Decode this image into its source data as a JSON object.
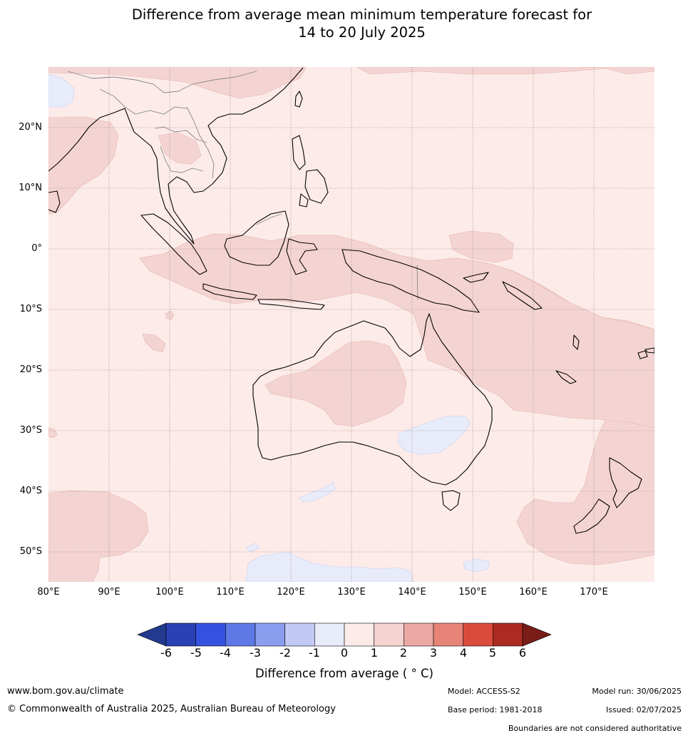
{
  "title": {
    "line1": "Difference from average mean minimum temperature forecast for",
    "line2": "14 to 20 July 2025"
  },
  "map": {
    "latitude_labels": [
      "20°N",
      "10°N",
      "0°",
      "10°S",
      "20°S",
      "30°S",
      "40°S",
      "50°S"
    ],
    "longitude_labels": [
      "80°E",
      "90°E",
      "100°E",
      "110°E",
      "120°E",
      "130°E",
      "140°E",
      "150°E",
      "160°E",
      "170°E"
    ],
    "extent": {
      "lon_min": 80,
      "lon_max": 180,
      "lat_min": -55,
      "lat_max": 30
    },
    "gridlines": true,
    "colors": {
      "ocean_0_1": "#fcebe9",
      "warm_1_2": "#f4d4d2",
      "cool_m1_0": "#e8ecfa",
      "coastline": "#000000",
      "borders": "#808080"
    }
  },
  "colorbar": {
    "ticks": [
      "-6",
      "-5",
      "-4",
      "-3",
      "-2",
      "-1",
      "0",
      "1",
      "2",
      "3",
      "4",
      "5",
      "6"
    ],
    "label": "Difference from average ( ° C)",
    "colors": [
      "#233a8e",
      "#2a40b5",
      "#3352e0",
      "#5e78e6",
      "#8a9def",
      "#c2c9f4",
      "#e9ecfa",
      "#fcebe9",
      "#f5d3d0",
      "#eaa9a3",
      "#e68478",
      "#da4b3e",
      "#ad2a22",
      "#7a1c18"
    ]
  },
  "footer": {
    "website": "www.bom.gov.au/climate",
    "copyright": "© Commonwealth of Australia 2025, Australian Bureau of Meteorology",
    "model": "Model: ACCESS-S2",
    "base_period": "Base period: 1981-2018",
    "model_run": "Model run: 30/06/2025",
    "issued": "Issued: 02/07/2025",
    "disclaimer": "Boundaries are not considered authoritative"
  }
}
